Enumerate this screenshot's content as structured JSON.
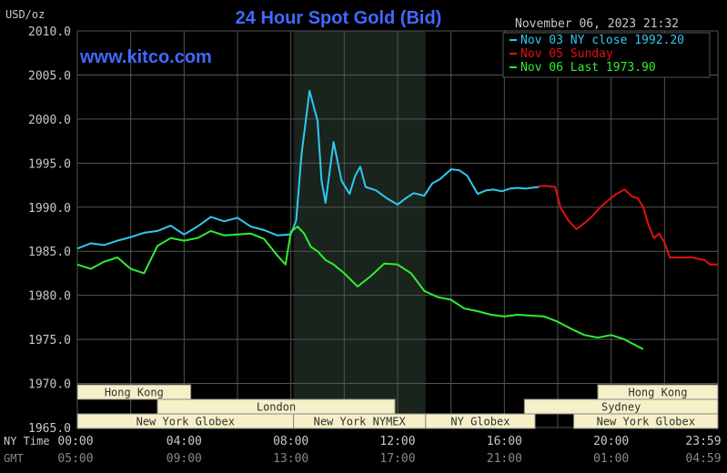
{
  "title": "24 Hour Spot Gold (Bid)",
  "units": "USD/oz",
  "timestamp": "November 06, 2023 21:32",
  "website": "www.kitco.com",
  "colors": {
    "background": "#000000",
    "grid": "#555555",
    "title": "#4169ff",
    "website": "#4169ff",
    "text": "#c8c8c8",
    "session_bg": "#f5f0c8",
    "session_text": "#333333",
    "highlight": "#18241c"
  },
  "chart_data": {
    "type": "line",
    "title": "24 Hour Spot Gold (Bid)",
    "ylabel": "USD/oz",
    "ylim": [
      1965,
      2010
    ],
    "yticks": [
      "2010.0",
      "2005.0",
      "2000.0",
      "1995.0",
      "1990.0",
      "1985.0",
      "1980.0",
      "1975.0",
      "1970.0",
      "1965.0"
    ],
    "ytick_values": [
      2010,
      2005,
      2000,
      1995,
      1990,
      1985,
      1980,
      1975,
      1970,
      1965
    ],
    "xlim": [
      0,
      24
    ],
    "x_rows": [
      {
        "label": "NY Time",
        "ticks": [
          "00:00",
          "04:00",
          "08:00",
          "12:00",
          "16:00",
          "20:00",
          "23:59"
        ],
        "color": "#c8c8c8"
      },
      {
        "label": "GMT",
        "ticks": [
          "05:00",
          "09:00",
          "13:00",
          "17:00",
          "21:00",
          "01:00",
          "04:59"
        ],
        "color": "#888888"
      }
    ],
    "grid": true,
    "legend_position": "top-right",
    "highlight_range": [
      8.1,
      13.05
    ],
    "series": [
      {
        "name": "Nov 03 NY close 1992.20",
        "color": "#30c8f0",
        "x": [
          0,
          0.5,
          1,
          1.5,
          2,
          2.5,
          3,
          3.5,
          4,
          4.5,
          5,
          5.5,
          6,
          6.5,
          7,
          7.5,
          8,
          8.2,
          8.4,
          8.7,
          9,
          9.15,
          9.3,
          9.6,
          9.9,
          10.2,
          10.4,
          10.6,
          10.8,
          11.2,
          11.6,
          12,
          12.3,
          12.6,
          13,
          13.3,
          13.6,
          14,
          14.3,
          14.6,
          15,
          15.3,
          15.6,
          15.9,
          16.2,
          16.5,
          16.8,
          17,
          17.3
        ],
        "y": [
          1985.3,
          1985.9,
          1985.7,
          1986.2,
          1986.6,
          1987.1,
          1987.3,
          1987.9,
          1986.9,
          1987.8,
          1988.9,
          1988.4,
          1988.8,
          1987.8,
          1987.4,
          1986.8,
          1986.9,
          1988.5,
          1996,
          2003.2,
          1999.8,
          1993,
          1990.5,
          1997.4,
          1993,
          1991.5,
          1993.5,
          1994.6,
          1992.3,
          1991.9,
          1991,
          1990.3,
          1991,
          1991.6,
          1991.3,
          1992.7,
          1993.2,
          1994.3,
          1994.2,
          1993.6,
          1991.5,
          1991.9,
          1992,
          1991.8,
          1992.1,
          1992.2,
          1992.1,
          1992.2,
          1992.3
        ]
      },
      {
        "name": "Nov 05 Sunday",
        "color": "#e01010",
        "x": [
          17.3,
          17.6,
          17.9,
          18.1,
          18.4,
          18.7,
          19,
          19.3,
          19.6,
          19.9,
          20.2,
          20.5,
          20.8,
          21,
          21.2,
          21.4,
          21.6,
          21.8,
          22,
          22.2,
          22.5,
          23,
          23.5,
          23.7,
          23.99
        ],
        "y": [
          1992.4,
          1992.4,
          1992.3,
          1990,
          1988.5,
          1987.5,
          1988.2,
          1989,
          1990,
          1990.8,
          1991.5,
          1992,
          1991.2,
          1991,
          1990,
          1988,
          1986.5,
          1987,
          1986,
          1984.3,
          1984.3,
          1984.3,
          1984,
          1983.5,
          1983.5
        ]
      },
      {
        "name": "Nov 06 Last 1973.90",
        "color": "#30ee30",
        "x": [
          0,
          0.5,
          1,
          1.5,
          2,
          2.5,
          3,
          3.5,
          4,
          4.5,
          5,
          5.5,
          6,
          6.5,
          7,
          7.5,
          7.8,
          8,
          8.25,
          8.5,
          8.75,
          9,
          9.3,
          9.6,
          10,
          10.5,
          11,
          11.5,
          12,
          12.5,
          13,
          13.5,
          14,
          14.5,
          15,
          15.5,
          16,
          16.5,
          17,
          17.5,
          18,
          18.5,
          19,
          19.5,
          20,
          20.5,
          21,
          21.2
        ],
        "y": [
          1983.5,
          1983,
          1983.8,
          1984.3,
          1983,
          1982.5,
          1985.6,
          1986.5,
          1986.2,
          1986.5,
          1987.3,
          1986.8,
          1986.9,
          1987,
          1986.4,
          1984.5,
          1983.5,
          1987.2,
          1987.8,
          1987,
          1985.5,
          1985,
          1984,
          1983.5,
          1982.5,
          1981,
          1982.2,
          1983.6,
          1983.5,
          1982.5,
          1980.5,
          1979.8,
          1979.5,
          1978.5,
          1978.2,
          1977.8,
          1977.6,
          1977.8,
          1977.7,
          1977.6,
          1977,
          1976.2,
          1975.5,
          1975.2,
          1975.5,
          1975,
          1974.2,
          1973.9
        ]
      }
    ],
    "sessions": [
      {
        "label": "Hong Kong",
        "row": 0,
        "start": 0,
        "end": 4.25
      },
      {
        "label": "London",
        "row": 1,
        "start": 3.0,
        "end": 11.9
      },
      {
        "label": "New York Globex",
        "row": 2,
        "start": 0,
        "end": 8.1
      },
      {
        "label": "New York NYMEX",
        "row": 2,
        "start": 8.1,
        "end": 13.05
      },
      {
        "label": "NY Globex",
        "row": 2,
        "start": 13.05,
        "end": 17.15
      },
      {
        "label": "Hong Kong",
        "row": 0,
        "start": 19.5,
        "end": 24
      },
      {
        "label": "Sydney",
        "row": 1,
        "start": 16.75,
        "end": 24
      },
      {
        "label": "New York Globex",
        "row": 2,
        "start": 18.6,
        "end": 24
      }
    ]
  }
}
